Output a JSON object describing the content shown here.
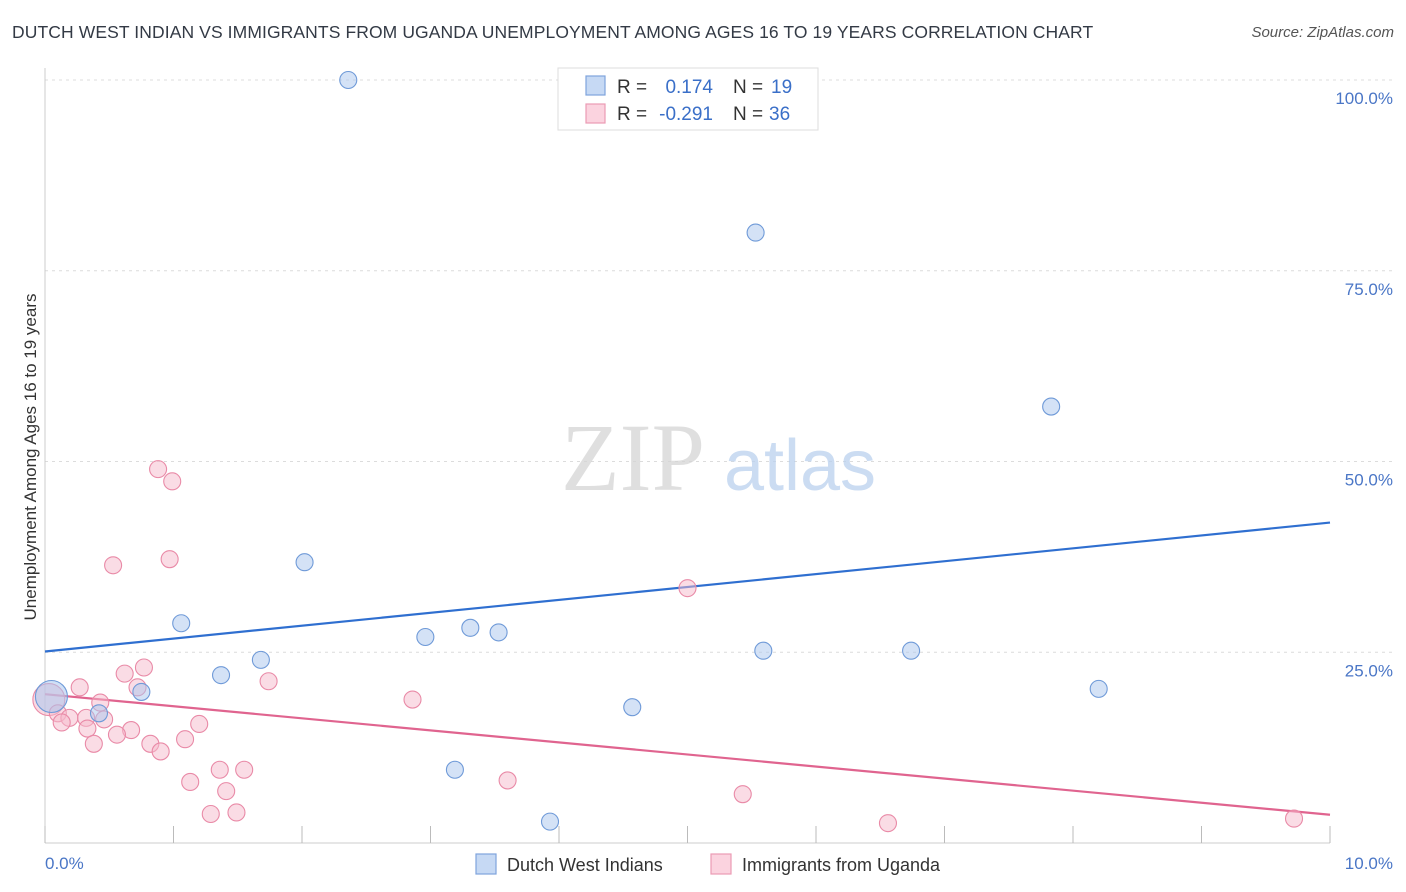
{
  "title": "DUTCH WEST INDIAN VS IMMIGRANTS FROM UGANDA UNEMPLOYMENT AMONG AGES 16 TO 19 YEARS CORRELATION CHART",
  "source": "Source: ZipAtlas.com",
  "watermark": {
    "zip": "ZIP",
    "atlas": "atlas"
  },
  "legend": {
    "rows": [
      {
        "r_label": "R =",
        "r_value": "0.174",
        "n_label": "N =",
        "n_value": "19",
        "color": "#a9c6ee"
      },
      {
        "r_label": "R =",
        "r_value": "-0.291",
        "n_label": "N =",
        "n_value": "36",
        "color": "#f6b9cb"
      }
    ]
  },
  "bottom_legend": [
    "Dutch West Indians",
    "Immigrants from Uganda"
  ],
  "chart_data": {
    "type": "scatter",
    "title": "DUTCH WEST INDIAN VS IMMIGRANTS FROM UGANDA UNEMPLOYMENT AMONG AGES 16 TO 19 YEARS CORRELATION CHART",
    "xlabel": "",
    "ylabel": "Unemployment Among Ages 16 to 19 years",
    "xlim": [
      0,
      10
    ],
    "ylim": [
      0,
      100
    ],
    "x_tick_labels": [
      "0.0%",
      "10.0%"
    ],
    "y_tick_labels": [
      "100.0%",
      "75.0%",
      "50.0%",
      "25.0%"
    ],
    "y_ticks": [
      100,
      75,
      50,
      25
    ],
    "grid": true,
    "legend_position": "top-center",
    "series": [
      {
        "name": "Dutch West Indians",
        "color": "#a9c6ee",
        "stroke": "#6f9ad8",
        "line_color": "#2f6fd0",
        "trend": {
          "x": [
            0,
            10
          ],
          "y": [
            25.1,
            42.0
          ]
        },
        "points": [
          {
            "x": 0.05,
            "y": 19.2,
            "big": true
          },
          {
            "x": 2.36,
            "y": 100.0
          },
          {
            "x": 5.53,
            "y": 80.0
          },
          {
            "x": 7.83,
            "y": 57.2
          },
          {
            "x": 2.02,
            "y": 36.8
          },
          {
            "x": 1.06,
            "y": 28.8
          },
          {
            "x": 2.96,
            "y": 27.0
          },
          {
            "x": 3.31,
            "y": 28.2
          },
          {
            "x": 3.53,
            "y": 27.6
          },
          {
            "x": 1.68,
            "y": 24.0
          },
          {
            "x": 5.59,
            "y": 25.2
          },
          {
            "x": 6.74,
            "y": 25.2
          },
          {
            "x": 1.37,
            "y": 22.0
          },
          {
            "x": 0.75,
            "y": 19.8
          },
          {
            "x": 8.2,
            "y": 20.2
          },
          {
            "x": 0.42,
            "y": 17.0
          },
          {
            "x": 4.57,
            "y": 17.8
          },
          {
            "x": 3.19,
            "y": 9.6
          },
          {
            "x": 3.93,
            "y": 2.8
          }
        ]
      },
      {
        "name": "Immigrants from Uganda",
        "color": "#f6b9cb",
        "stroke": "#e98aa7",
        "line_color": "#e0648f",
        "trend": {
          "x": [
            0,
            10
          ],
          "y": [
            19.5,
            3.7
          ]
        },
        "points": [
          {
            "x": 0.03,
            "y": 18.8,
            "big": true
          },
          {
            "x": 0.88,
            "y": 49.0
          },
          {
            "x": 0.99,
            "y": 47.4
          },
          {
            "x": 0.53,
            "y": 36.4
          },
          {
            "x": 0.97,
            "y": 37.2
          },
          {
            "x": 5.0,
            "y": 33.4
          },
          {
            "x": 0.77,
            "y": 23.0
          },
          {
            "x": 0.62,
            "y": 22.2
          },
          {
            "x": 1.74,
            "y": 21.2
          },
          {
            "x": 0.27,
            "y": 20.4
          },
          {
            "x": 0.72,
            "y": 20.4
          },
          {
            "x": 2.86,
            "y": 18.8
          },
          {
            "x": 0.43,
            "y": 18.4
          },
          {
            "x": 0.1,
            "y": 17.0
          },
          {
            "x": 0.19,
            "y": 16.4
          },
          {
            "x": 0.32,
            "y": 16.4
          },
          {
            "x": 0.46,
            "y": 16.2
          },
          {
            "x": 0.13,
            "y": 15.8
          },
          {
            "x": 1.2,
            "y": 15.6
          },
          {
            "x": 0.33,
            "y": 15.0
          },
          {
            "x": 0.67,
            "y": 14.8
          },
          {
            "x": 0.56,
            "y": 14.2
          },
          {
            "x": 1.09,
            "y": 13.6
          },
          {
            "x": 0.38,
            "y": 13.0
          },
          {
            "x": 0.82,
            "y": 13.0
          },
          {
            "x": 0.9,
            "y": 12.0
          },
          {
            "x": 1.36,
            "y": 9.6
          },
          {
            "x": 1.55,
            "y": 9.6
          },
          {
            "x": 1.13,
            "y": 8.0
          },
          {
            "x": 3.6,
            "y": 8.2
          },
          {
            "x": 1.41,
            "y": 6.8
          },
          {
            "x": 5.43,
            "y": 6.4
          },
          {
            "x": 1.29,
            "y": 3.8
          },
          {
            "x": 1.49,
            "y": 4.0
          },
          {
            "x": 6.56,
            "y": 2.6
          },
          {
            "x": 9.72,
            "y": 3.2
          }
        ]
      }
    ]
  }
}
